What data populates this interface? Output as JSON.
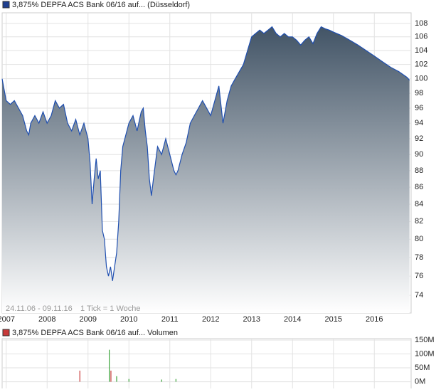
{
  "chart_data": [
    {
      "type": "area",
      "title": "3,875% DEPFA ACS Bank 06/16 auf... (Düsseldorf)",
      "annotations": [
        "24.11.06 - 09.11.16",
        "1 Tick = 1 Woche"
      ],
      "log": true,
      "grid": true,
      "color": "#1f4fb0",
      "legend_color": "#1f3f8f",
      "xlim": [
        2006.9,
        2016.9
      ],
      "xticks": [
        2007,
        2008,
        2009,
        2010,
        2011,
        2012,
        2013,
        2014,
        2015,
        2016
      ],
      "ylim": [
        72.2,
        109.6
      ],
      "yticks": [
        74,
        76,
        78,
        80,
        82,
        84,
        86,
        88,
        90,
        92,
        94,
        96,
        98,
        100,
        102,
        104,
        106,
        108
      ],
      "x": [
        2006.9,
        2007.0,
        2007.1,
        2007.2,
        2007.3,
        2007.4,
        2007.5,
        2007.55,
        2007.6,
        2007.7,
        2007.8,
        2007.9,
        2008.0,
        2008.1,
        2008.2,
        2008.3,
        2008.4,
        2008.5,
        2008.6,
        2008.7,
        2008.8,
        2008.9,
        2009.0,
        2009.05,
        2009.1,
        2009.15,
        2009.2,
        2009.25,
        2009.3,
        2009.35,
        2009.4,
        2009.45,
        2009.5,
        2009.55,
        2009.6,
        2009.65,
        2009.7,
        2009.75,
        2009.8,
        2009.85,
        2009.9,
        2010.0,
        2010.1,
        2010.2,
        2010.3,
        2010.35,
        2010.4,
        2010.45,
        2010.5,
        2010.55,
        2010.6,
        2010.7,
        2010.8,
        2010.9,
        2011.0,
        2011.1,
        2011.15,
        2011.2,
        2011.3,
        2011.4,
        2011.5,
        2011.6,
        2011.7,
        2011.8,
        2011.9,
        2012.0,
        2012.1,
        2012.2,
        2012.3,
        2012.4,
        2012.5,
        2012.6,
        2012.7,
        2012.8,
        2012.9,
        2013.0,
        2013.1,
        2013.2,
        2013.3,
        2013.4,
        2013.5,
        2013.6,
        2013.7,
        2013.8,
        2013.9,
        2014.0,
        2014.1,
        2014.2,
        2014.3,
        2014.4,
        2014.5,
        2014.6,
        2014.7,
        2014.8,
        2014.9,
        2015.0,
        2015.2,
        2015.4,
        2015.6,
        2015.8,
        2016.0,
        2016.2,
        2016.4,
        2016.6,
        2016.8,
        2016.86
      ],
      "values": [
        100,
        97,
        96.5,
        97,
        96,
        95,
        93,
        92.5,
        94,
        95,
        94,
        95.5,
        94,
        95,
        97,
        96,
        96.5,
        94,
        93,
        94.5,
        92.5,
        94,
        92,
        89,
        84,
        87,
        89.5,
        87,
        88,
        81,
        80,
        77,
        76,
        77,
        75.5,
        77,
        78.5,
        82,
        88,
        91,
        92,
        94,
        95,
        93,
        95.5,
        96,
        93,
        91,
        87,
        85,
        87,
        91,
        90,
        92,
        90,
        88,
        87.5,
        88,
        90,
        91.5,
        94,
        95,
        96,
        97,
        96,
        95,
        97,
        99,
        94,
        97,
        99,
        100,
        101,
        102,
        104,
        106,
        106.5,
        107,
        106.5,
        107,
        107.5,
        106.5,
        106,
        106.5,
        106,
        106,
        105.5,
        104.8,
        105.5,
        106,
        105,
        106.5,
        107.5,
        107.2,
        107,
        106.7,
        106.2,
        105.5,
        104.8,
        104,
        103.2,
        102.4,
        101.6,
        101,
        100.2,
        99.8
      ]
    },
    {
      "type": "volume",
      "title": "3,875% DEPFA ACS Bank 06/16 auf... Volumen",
      "legend_color": "#c83a3a",
      "ylim": [
        -24,
        155
      ],
      "yticks": [
        {
          "value": 0,
          "label": "0M"
        },
        {
          "value": 50,
          "label": "50M"
        },
        {
          "value": 100,
          "label": "100M"
        },
        {
          "value": 150,
          "label": "150M"
        }
      ],
      "x": [
        2008.8,
        2009.52,
        2009.56,
        2009.7,
        2010.0,
        2010.8,
        2011.15
      ],
      "values": [
        40,
        115,
        40,
        20,
        10,
        8,
        10
      ],
      "colors": [
        "#c83a3a",
        "#3aa33a",
        "#c83a3a",
        "#3aa33a",
        "#3aa33a",
        "#3aa33a",
        "#3aa33a"
      ]
    }
  ]
}
